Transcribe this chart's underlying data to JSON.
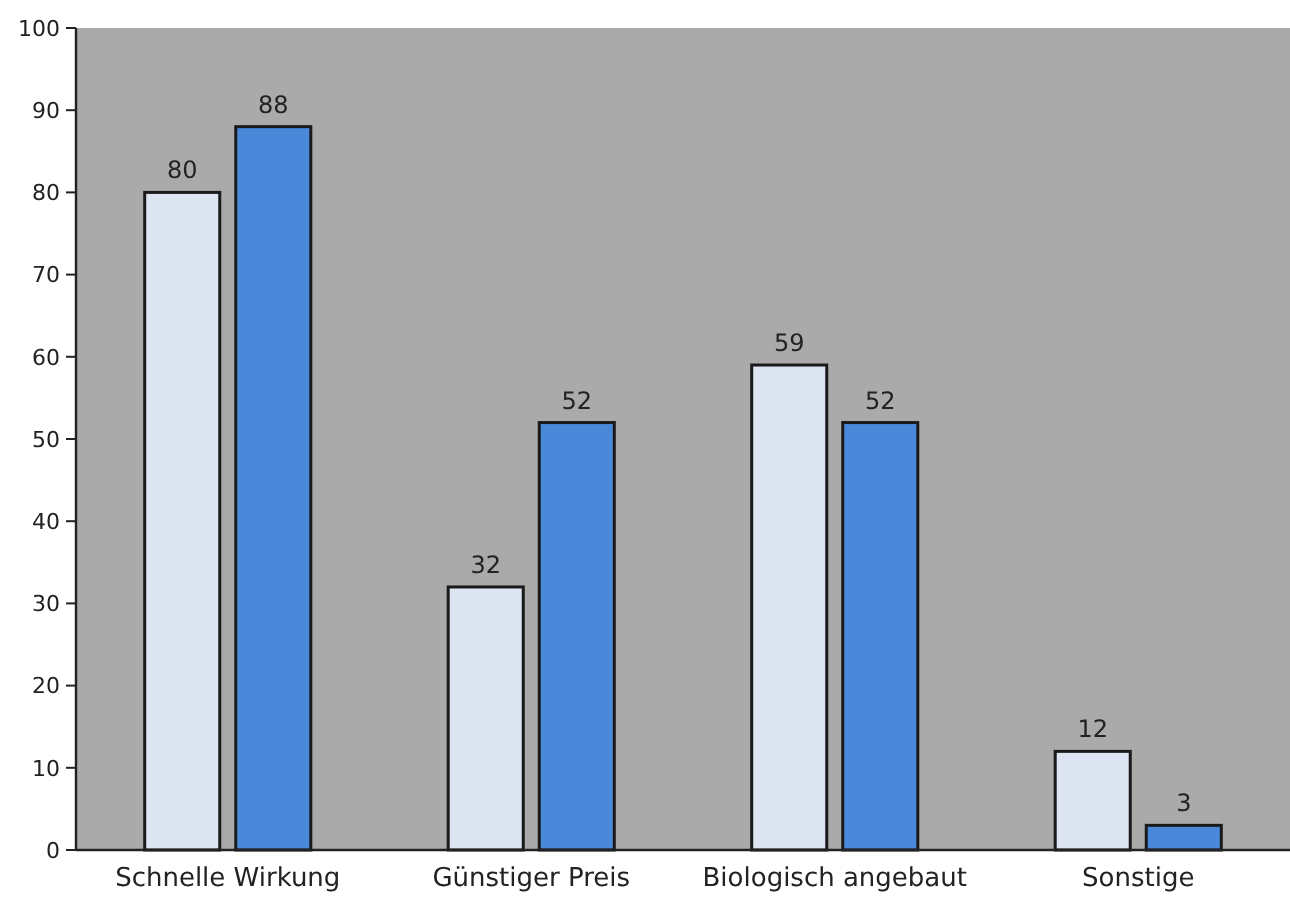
{
  "chart_data": {
    "type": "bar",
    "categories": [
      "Schnelle Wirkung",
      "Günstiger Preis",
      "Biologisch angebaut",
      "Sonstige"
    ],
    "series": [
      {
        "color": "#dde5f3",
        "values": [
          80,
          32,
          59,
          12
        ]
      },
      {
        "color": "#4a88da",
        "values": [
          88,
          52,
          52,
          3
        ]
      }
    ],
    "ylim": [
      0,
      100
    ],
    "yticks": [
      0,
      10,
      20,
      30,
      40,
      50,
      60,
      70,
      80,
      90,
      100
    ],
    "data_labels": true,
    "grid": false
  }
}
